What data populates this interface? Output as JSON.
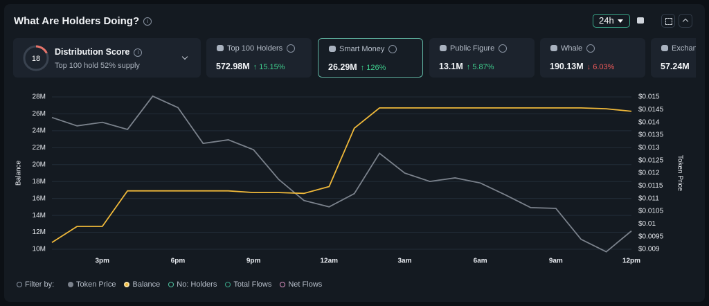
{
  "header": {
    "title": "What Are Holders Doing?",
    "range": "24h"
  },
  "distribution": {
    "score": 18,
    "label": "Distribution Score",
    "sub": "Top 100 hold 52% supply"
  },
  "cards": [
    {
      "label": "Top 100 Holders",
      "value": "572.98M",
      "change": "↑ 15.15%",
      "dir": "up"
    },
    {
      "label": "Smart Money",
      "value": "26.29M",
      "change": "↑ 126%",
      "dir": "up",
      "selected": true
    },
    {
      "label": "Public Figure",
      "value": "13.1M",
      "change": "↑ 5.87%",
      "dir": "up"
    },
    {
      "label": "Whale",
      "value": "190.13M",
      "change": "↓ 6.03%",
      "dir": "down"
    },
    {
      "label": "Exchange",
      "value": "57.24M"
    }
  ],
  "filter": {
    "label": "Filter by:",
    "extra": [
      {
        "name": "No: Holders",
        "color": "#4fc3a1"
      },
      {
        "name": "Total Flows",
        "color": "#3aa88a"
      },
      {
        "name": "Net Flows",
        "color": "#d98fc0"
      }
    ]
  },
  "chart_data": {
    "type": "line",
    "categories": [
      null,
      null,
      "3pm",
      null,
      null,
      "6pm",
      null,
      null,
      "9pm",
      null,
      null,
      "12am",
      null,
      null,
      "3am",
      null,
      null,
      "6am",
      null,
      null,
      "9am",
      null,
      null,
      "12pm"
    ],
    "ylabel": "Balance",
    "y2label": "Token Price",
    "grid": true,
    "ylim": [
      10,
      28
    ],
    "yticks": [
      {
        "value": 10,
        "label": "10M"
      },
      {
        "value": 12,
        "label": "12M"
      },
      {
        "value": 14,
        "label": "14M"
      },
      {
        "value": 16,
        "label": "16M"
      },
      {
        "value": 18,
        "label": "18M"
      },
      {
        "value": 20,
        "label": "20M"
      },
      {
        "value": 22,
        "label": "22M"
      },
      {
        "value": 24,
        "label": "24M"
      },
      {
        "value": 26,
        "label": "26M"
      },
      {
        "value": 28,
        "label": "28M"
      }
    ],
    "y2lim": [
      0.009,
      0.015
    ],
    "y2ticks": [
      {
        "value": 0.009,
        "label": "$0.009"
      },
      {
        "value": 0.0095,
        "label": "$0.0095"
      },
      {
        "value": 0.01,
        "label": "$0.01"
      },
      {
        "value": 0.0105,
        "label": "$0.0105"
      },
      {
        "value": 0.011,
        "label": "$0.011"
      },
      {
        "value": 0.0115,
        "label": "$0.0115"
      },
      {
        "value": 0.012,
        "label": "$0.012"
      },
      {
        "value": 0.0125,
        "label": "$0.0125"
      },
      {
        "value": 0.013,
        "label": "$0.013"
      },
      {
        "value": 0.0135,
        "label": "$0.0135"
      },
      {
        "value": 0.014,
        "label": "$0.014"
      },
      {
        "value": 0.0145,
        "label": "$0.0145"
      },
      {
        "value": 0.015,
        "label": "$0.015"
      }
    ],
    "series": [
      {
        "name": "Token Price",
        "color": "#7b828c",
        "axis": "y2",
        "values": [
          0.01419,
          0.01386,
          0.014,
          0.01372,
          0.01503,
          0.01458,
          0.01317,
          0.01331,
          0.01292,
          0.01175,
          0.01092,
          0.01067,
          0.01119,
          0.01278,
          0.012,
          0.01167,
          0.01181,
          0.01161,
          0.01114,
          0.01064,
          0.01061,
          0.00939,
          0.0089,
          0.00972
        ]
      },
      {
        "name": "Balance",
        "color": "#f0b93a",
        "values": [
          10.8,
          12.7,
          12.7,
          16.9,
          16.9,
          16.9,
          16.9,
          16.9,
          16.7,
          16.7,
          16.6,
          17.4,
          24.3,
          26.7,
          26.7,
          26.7,
          26.7,
          26.7,
          26.7,
          26.7,
          26.7,
          26.7,
          26.6,
          26.3
        ]
      }
    ]
  }
}
